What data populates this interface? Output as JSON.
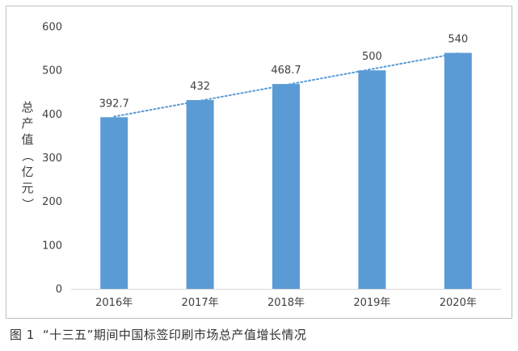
{
  "chart_data": {
    "type": "bar",
    "categories": [
      "2016年",
      "2017年",
      "2018年",
      "2019年",
      "2020年"
    ],
    "values": [
      392.7,
      432,
      468.7,
      500,
      540
    ],
    "data_labels": [
      "392.7",
      "432",
      "468.7",
      "500",
      "540"
    ],
    "ylabel": "总产值（亿元）",
    "ylim": [
      0,
      600
    ],
    "yticks": [
      0,
      100,
      200,
      300,
      400,
      500,
      600
    ],
    "bar_color": "#5b9bd5",
    "trendline": {
      "style": "dotted",
      "color": "#5b9bd5"
    },
    "grid": false,
    "legend": "none"
  },
  "caption": {
    "figure_number": "图 1",
    "text": "“十三五”期间中国标签印刷市场总产值增长情况"
  }
}
